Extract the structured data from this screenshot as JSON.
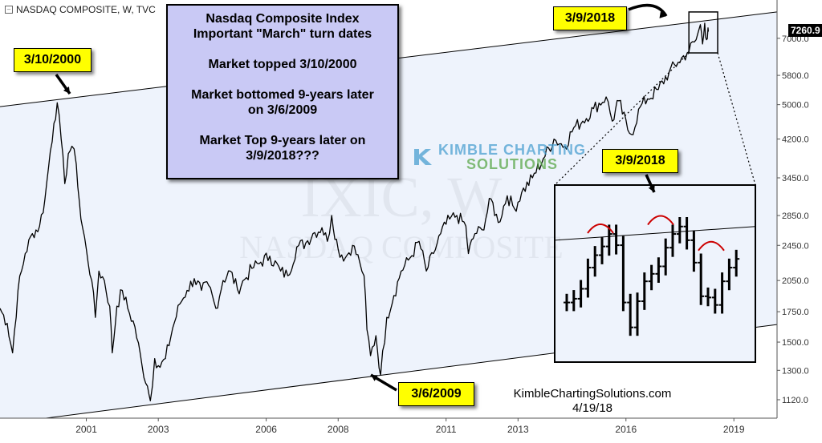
{
  "header": {
    "symbol_line": "NASDAQ COMPOSITE, W, TVC",
    "menu_icon": "collapse-icon"
  },
  "watermark": {
    "ticker": "IXIC, W",
    "name": "NASDAQ COMPOSITE"
  },
  "price_tag": "7260.9",
  "info_box": {
    "line1": "Nasdaq Composite Index",
    "line2": "Important \"March\" turn dates",
    "line3": "Market topped 3/10/2000",
    "line4": "Market bottomed 9-years later",
    "line5": "on 3/6/2009",
    "line6": "Market Top 9-years later on",
    "line7": "3/9/2018???"
  },
  "callouts": {
    "top_2000": "3/10/2000",
    "top_2018": "3/9/2018",
    "bottom_2009": "3/6/2009",
    "inset_2018": "3/9/2018"
  },
  "logo": {
    "line1": "KIMBLE CHARTING",
    "line2": "SOLUTIONS"
  },
  "footer": {
    "site": "KimbleChartingSolutions.com",
    "date": "4/19/18"
  },
  "colors": {
    "channel_fill": "#eef3fc",
    "callout": "#ffff00",
    "info_box": "#c9c9f5",
    "arc": "#cc0000",
    "price_line": "#000000"
  },
  "chart_data": {
    "type": "line",
    "title": "NASDAQ COMPOSITE, W, TVC",
    "xlabel": "",
    "ylabel": "",
    "scale": "log",
    "ylim": [
      1020,
      8500
    ],
    "xlim": [
      1998.6,
      2020.2
    ],
    "y_ticks": [
      1120,
      1300,
      1500,
      1750,
      2050,
      2450,
      2850,
      3450,
      4200,
      5000,
      5800,
      7000,
      8500
    ],
    "x_ticks": [
      {
        "label": "2001",
        "x": 2001.0
      },
      {
        "label": "2003",
        "x": 2003.0
      },
      {
        "label": "2006",
        "x": 2006.0
      },
      {
        "label": "2008",
        "x": 2008.0
      },
      {
        "label": "2011",
        "x": 2011.0
      },
      {
        "label": "2013",
        "x": 2013.0
      },
      {
        "label": "2016",
        "x": 2016.0
      },
      {
        "label": "2019",
        "x": 2019.0
      }
    ],
    "last_value": 7260.9,
    "series": [
      {
        "points": [
          [
            1998.6,
            1780
          ],
          [
            1998.8,
            1650
          ],
          [
            1998.95,
            1420
          ],
          [
            1999.1,
            1950
          ],
          [
            1999.3,
            2350
          ],
          [
            1999.5,
            2600
          ],
          [
            1999.7,
            2700
          ],
          [
            1999.85,
            3100
          ],
          [
            2000.0,
            3950
          ],
          [
            2000.1,
            4550
          ],
          [
            2000.19,
            5048
          ],
          [
            2000.3,
            4200
          ],
          [
            2000.4,
            3350
          ],
          [
            2000.5,
            3900
          ],
          [
            2000.6,
            4050
          ],
          [
            2000.72,
            3700
          ],
          [
            2000.85,
            2800
          ],
          [
            2001.0,
            2400
          ],
          [
            2001.15,
            2050
          ],
          [
            2001.25,
            1700
          ],
          [
            2001.35,
            2150
          ],
          [
            2001.5,
            2050
          ],
          [
            2001.65,
            1800
          ],
          [
            2001.72,
            1420
          ],
          [
            2001.85,
            1800
          ],
          [
            2002.0,
            1950
          ],
          [
            2002.15,
            1780
          ],
          [
            2002.35,
            1620
          ],
          [
            2002.55,
            1330
          ],
          [
            2002.7,
            1200
          ],
          [
            2002.78,
            1114
          ],
          [
            2002.9,
            1380
          ],
          [
            2003.05,
            1320
          ],
          [
            2003.2,
            1380
          ],
          [
            2003.4,
            1610
          ],
          [
            2003.6,
            1820
          ],
          [
            2003.8,
            1950
          ],
          [
            2004.0,
            2070
          ],
          [
            2004.2,
            1950
          ],
          [
            2004.4,
            2000
          ],
          [
            2004.6,
            1780
          ],
          [
            2004.8,
            2050
          ],
          [
            2005.0,
            2150
          ],
          [
            2005.2,
            1960
          ],
          [
            2005.4,
            2060
          ],
          [
            2005.6,
            2180
          ],
          [
            2005.85,
            2250
          ],
          [
            2006.1,
            2320
          ],
          [
            2006.4,
            2150
          ],
          [
            2006.6,
            2100
          ],
          [
            2006.85,
            2430
          ],
          [
            2007.1,
            2480
          ],
          [
            2007.3,
            2600
          ],
          [
            2007.55,
            2680
          ],
          [
            2007.7,
            2500
          ],
          [
            2007.82,
            2850
          ],
          [
            2008.0,
            2400
          ],
          [
            2008.2,
            2300
          ],
          [
            2008.4,
            2450
          ],
          [
            2008.6,
            2250
          ],
          [
            2008.72,
            2100
          ],
          [
            2008.8,
            1600
          ],
          [
            2008.9,
            1400
          ],
          [
            2009.05,
            1550
          ],
          [
            2009.18,
            1268
          ],
          [
            2009.35,
            1700
          ],
          [
            2009.55,
            1900
          ],
          [
            2009.75,
            2150
          ],
          [
            2010.0,
            2300
          ],
          [
            2010.25,
            2500
          ],
          [
            2010.45,
            2150
          ],
          [
            2010.65,
            2350
          ],
          [
            2010.85,
            2600
          ],
          [
            2011.1,
            2800
          ],
          [
            2011.3,
            2850
          ],
          [
            2011.55,
            2700
          ],
          [
            2011.62,
            2350
          ],
          [
            2011.8,
            2600
          ],
          [
            2012.0,
            2650
          ],
          [
            2012.25,
            3100
          ],
          [
            2012.45,
            2750
          ],
          [
            2012.7,
            3150
          ],
          [
            2012.9,
            2950
          ],
          [
            2013.1,
            3200
          ],
          [
            2013.4,
            3450
          ],
          [
            2013.7,
            3800
          ],
          [
            2014.0,
            4200
          ],
          [
            2014.3,
            4050
          ],
          [
            2014.55,
            4450
          ],
          [
            2014.8,
            4600
          ],
          [
            2015.1,
            4900
          ],
          [
            2015.45,
            5200
          ],
          [
            2015.62,
            4600
          ],
          [
            2015.8,
            5100
          ],
          [
            2016.05,
            4400
          ],
          [
            2016.15,
            4300
          ],
          [
            2016.4,
            4950
          ],
          [
            2016.6,
            5150
          ],
          [
            2016.9,
            5400
          ],
          [
            2017.2,
            5900
          ],
          [
            2017.45,
            6200
          ],
          [
            2017.7,
            6500
          ],
          [
            2017.95,
            6950
          ],
          [
            2018.07,
            7500
          ],
          [
            2018.13,
            6800
          ],
          [
            2018.19,
            7560
          ],
          [
            2018.24,
            6950
          ],
          [
            2018.28,
            7380
          ],
          [
            2018.3,
            7260.9
          ]
        ]
      }
    ],
    "channel": {
      "upper": [
        [
          1998.6,
          4950
        ],
        [
          2020.2,
          8000
        ]
      ],
      "lower": [
        [
          1998.6,
          990
        ],
        [
          2020.2,
          1640
        ]
      ]
    },
    "inset": {
      "title": "3/9/2018",
      "weekly_closes": [
        6950,
        6980,
        7060,
        7230,
        7330,
        7400,
        7500,
        7410,
        6950,
        6750,
        6960,
        7120,
        7180,
        7240,
        7390,
        7500,
        7560,
        7450,
        7270,
        7000,
        6990,
        6930,
        7120,
        7230,
        7300
      ]
    }
  }
}
